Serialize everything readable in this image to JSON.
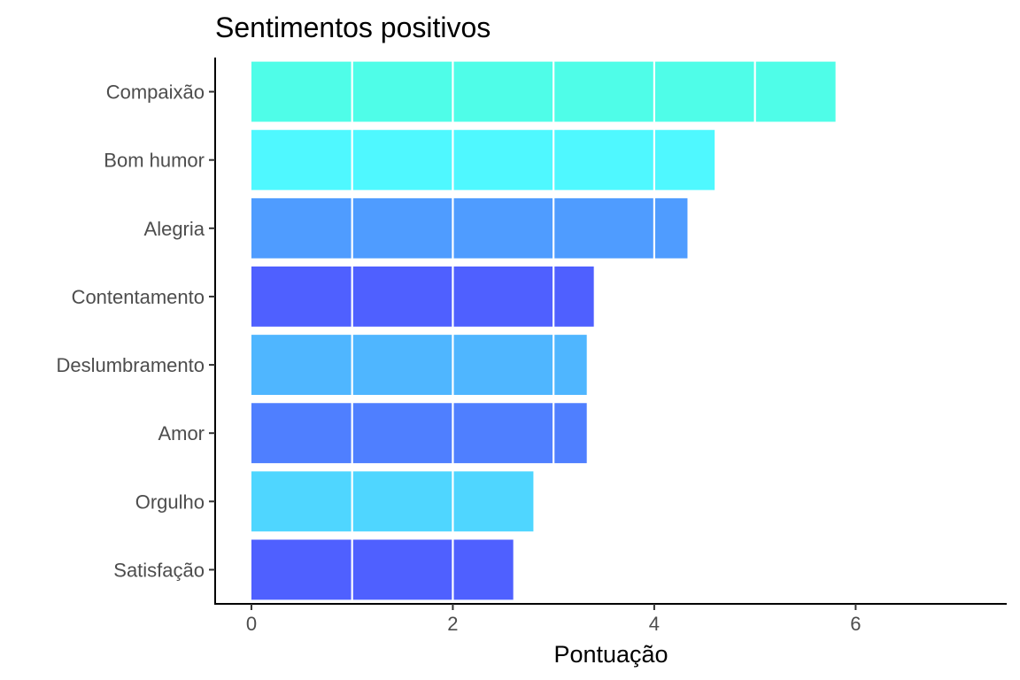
{
  "chart_data": {
    "type": "bar",
    "orientation": "horizontal",
    "title": "Sentimentos positivos",
    "xlabel": "Pontuação",
    "ylabel": "",
    "categories": [
      "Compaixão",
      "Bom humor",
      "Alegria",
      "Contentamento",
      "Deslumbramento",
      "Amor",
      "Orgulho",
      "Satisfação"
    ],
    "values": [
      5.8,
      4.6,
      4.33,
      3.4,
      3.33,
      3.33,
      2.8,
      2.6
    ],
    "colors": [
      "#4ffde8",
      "#4ff8ff",
      "#4f9cff",
      "#4f60ff",
      "#4fb6ff",
      "#4f7fff",
      "#4fd6ff",
      "#4f60ff"
    ],
    "xlim": [
      -0.36,
      7.5
    ],
    "xticks": [
      0,
      2,
      4,
      6
    ],
    "xtick_labels": [
      "0",
      "2",
      "4",
      "6"
    ],
    "grid": "vertical white lines drawn over bars at every 1 unit",
    "legend": "none"
  }
}
